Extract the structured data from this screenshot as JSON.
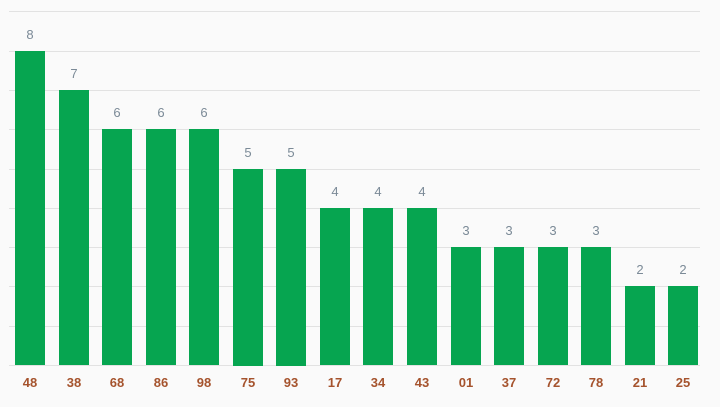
{
  "chart_data": {
    "type": "bar",
    "title": "",
    "xlabel": "",
    "ylabel": "",
    "categories": [
      "48",
      "38",
      "68",
      "86",
      "98",
      "75",
      "93",
      "17",
      "34",
      "43",
      "01",
      "37",
      "72",
      "78",
      "21",
      "25"
    ],
    "values": [
      8,
      7,
      6,
      6,
      6,
      5,
      5,
      4,
      4,
      4,
      3,
      3,
      3,
      3,
      2,
      2
    ],
    "ylim": [
      0,
      9
    ],
    "grid": true,
    "legend_position": "none",
    "value_labels_shown": true,
    "colors": {
      "bar": "#06a550",
      "value_label": "#7b8a97",
      "category_label": "#a5532d",
      "gridline": "#e2e2e2",
      "background": "#fafafa"
    }
  }
}
